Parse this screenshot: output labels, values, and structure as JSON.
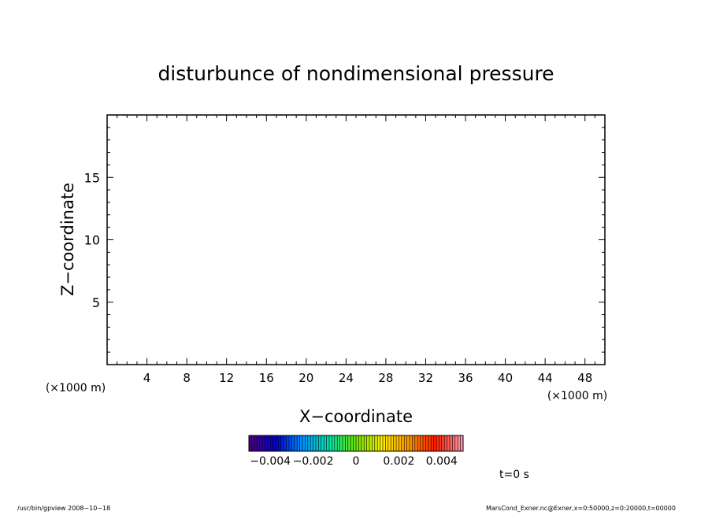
{
  "chart_data": {
    "type": "heatmap",
    "title": "disturbunce of nondimensional pressure",
    "xlabel": "X−coordinate",
    "ylabel": "Z−coordinate",
    "x_unit": "(×1000 m)",
    "y_unit": "(×1000 m)",
    "xlim": [
      0,
      50
    ],
    "ylim": [
      0,
      20
    ],
    "x_ticks": [
      4,
      8,
      12,
      16,
      20,
      24,
      28,
      32,
      36,
      40,
      44,
      48
    ],
    "y_ticks": [
      5,
      10,
      15
    ],
    "x_minor_step": 1,
    "y_minor_step": 1,
    "data": [],
    "grid": false,
    "colorbar": {
      "range": [
        -0.005,
        0.005
      ],
      "n_colors": 80,
      "tick_values": [
        -0.004,
        -0.002,
        0,
        0.002,
        0.004
      ],
      "tick_labels": [
        "−0.004",
        "−0.002",
        "0",
        "0.002",
        "0.004"
      ],
      "colors": [
        "#4b0078",
        "#0000d2",
        "#0096ff",
        "#00e6aa",
        "#6ee600",
        "#fff000",
        "#ff9600",
        "#ff1e00",
        "#ff96aa"
      ]
    }
  },
  "annotations": {
    "time": "t=0 s",
    "footer_left": "/usr/bin/gpview   2008−10−18",
    "footer_right": "MarsCond_Exner.nc@Exner,x=0:50000,z=0:20000,t=00000"
  }
}
